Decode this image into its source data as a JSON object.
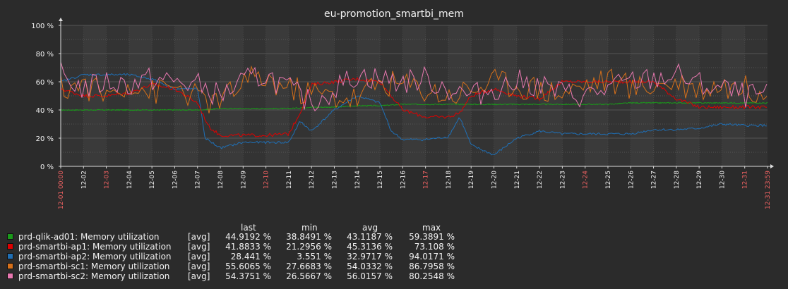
{
  "chart_data": {
    "type": "line",
    "title": "eu-promotion_smartbi_mem",
    "ylim": [
      0,
      100
    ],
    "y_ticks": [
      "0 %",
      "20 %",
      "40 %",
      "60 %",
      "80 %",
      "100 %"
    ],
    "x_start_label": "12-01 00:00",
    "x_end_label": "12-31 23:59",
    "x_tick_labels": [
      "12-02",
      "12-03",
      "12-04",
      "12-05",
      "12-06",
      "12-07",
      "12-08",
      "12-09",
      "12-10",
      "12-11",
      "12-12",
      "12-13",
      "12-14",
      "12-15",
      "12-16",
      "12-17",
      "12-18",
      "12-19",
      "12-20",
      "12-21",
      "12-22",
      "12-23",
      "12-24",
      "12-25",
      "12-26",
      "12-27",
      "12-28",
      "12-29",
      "12-30",
      "12-31"
    ],
    "weekend_tick_labels": [
      "12-03",
      "12-10",
      "12-17",
      "12-24",
      "12-31"
    ],
    "grid": true,
    "series": [
      {
        "name": "prd-qlik-ad01: Memory utilization",
        "color": "#1a9a1a",
        "x": [
          "12-01",
          "12-02",
          "12-03",
          "12-04",
          "12-05",
          "12-06",
          "12-07",
          "12-08",
          "12-09",
          "12-10",
          "12-11",
          "12-12",
          "12-13",
          "12-14",
          "12-15",
          "12-16",
          "12-17",
          "12-18",
          "12-19",
          "12-20",
          "12-21",
          "12-22",
          "12-23",
          "12-24",
          "12-25",
          "12-26",
          "12-27",
          "12-28",
          "12-29",
          "12-30",
          "12-31"
        ],
        "values": [
          40,
          40,
          40,
          40,
          40,
          40,
          40,
          41,
          41,
          41,
          41,
          42,
          42,
          43,
          43,
          44,
          44,
          44,
          44,
          44,
          44,
          44,
          44,
          44,
          44,
          45,
          45,
          45,
          45,
          45,
          45
        ]
      },
      {
        "name": "prd-smartbi-ap1: Memory utilization",
        "color": "#e00000",
        "x": [
          "12-01",
          "12-02",
          "12-03",
          "12-04",
          "12-05",
          "12-06",
          "12-07",
          "12-07 12:00",
          "12-08",
          "12-09",
          "12-10",
          "12-11",
          "12-11 12:00",
          "12-12",
          "12-13",
          "12-14",
          "12-15",
          "12-16",
          "12-17",
          "12-18",
          "12-18 12:00",
          "12-19",
          "12-20",
          "12-21",
          "12-22",
          "12-23",
          "12-24",
          "12-25",
          "12-26",
          "12-27",
          "12-28",
          "12-29",
          "12-30",
          "12-31"
        ],
        "values": [
          55,
          50,
          50,
          52,
          58,
          55,
          45,
          28,
          22,
          22,
          22,
          23,
          38,
          58,
          60,
          62,
          60,
          40,
          35,
          35,
          38,
          50,
          55,
          50,
          48,
          60,
          60,
          60,
          60,
          60,
          48,
          42,
          42,
          42
        ]
      },
      {
        "name": "prd-smartbi-ap2: Memory utilization",
        "color": "#1f6fb5",
        "x": [
          "12-01",
          "12-02",
          "12-03",
          "12-04",
          "12-05",
          "12-06",
          "12-07",
          "12-07 08:00",
          "12-08",
          "12-09",
          "12-10",
          "12-11",
          "12-11 12:00",
          "12-12",
          "12-13",
          "12-14",
          "12-15",
          "12-15 12:00",
          "12-16",
          "12-17",
          "12-18",
          "12-18 12:00",
          "12-19",
          "12-20",
          "12-21",
          "12-22",
          "12-23",
          "12-24",
          "12-25",
          "12-26",
          "12-27",
          "12-28",
          "12-29",
          "12-30",
          "12-31"
        ],
        "values": [
          60,
          65,
          65,
          65,
          62,
          55,
          55,
          20,
          13,
          17,
          17,
          17,
          32,
          25,
          40,
          50,
          45,
          25,
          19,
          19,
          21,
          35,
          15,
          8,
          20,
          25,
          23,
          23,
          23,
          23,
          26,
          26,
          27,
          30,
          29
        ]
      },
      {
        "name": "prd-smartbi-sc1: Memory utilization",
        "color": "#d7701a",
        "x": [
          "12-01",
          "12-02",
          "12-03",
          "12-04",
          "12-05",
          "12-06",
          "12-07",
          "12-08",
          "12-09",
          "12-10",
          "12-11",
          "12-12",
          "12-13",
          "12-14",
          "12-15",
          "12-16",
          "12-17",
          "12-18",
          "12-19",
          "12-20",
          "12-21",
          "12-22",
          "12-23",
          "12-24",
          "12-25",
          "12-26",
          "12-27",
          "12-28",
          "12-29",
          "12-30",
          "12-31"
        ],
        "values": [
          55,
          58,
          50,
          60,
          52,
          57,
          48,
          45,
          60,
          62,
          55,
          52,
          50,
          48,
          60,
          58,
          55,
          50,
          55,
          60,
          58,
          55,
          52,
          58,
          62,
          55,
          58,
          60,
          55,
          58,
          55
        ]
      },
      {
        "name": "prd-smartbi-sc2: Memory utilization",
        "color": "#e878b0",
        "x": [
          "12-01",
          "12-02",
          "12-03",
          "12-04",
          "12-05",
          "12-06",
          "12-07",
          "12-08",
          "12-09",
          "12-10",
          "12-11",
          "12-12",
          "12-13",
          "12-14",
          "12-15",
          "12-16",
          "12-17",
          "12-18",
          "12-19",
          "12-20",
          "12-21",
          "12-22",
          "12-23",
          "12-24",
          "12-25",
          "12-26",
          "12-27",
          "12-28",
          "12-29",
          "12-30",
          "12-31"
        ],
        "values": [
          65,
          55,
          60,
          58,
          62,
          60,
          58,
          50,
          60,
          65,
          55,
          45,
          55,
          65,
          62,
          60,
          62,
          55,
          50,
          55,
          60,
          58,
          52,
          50,
          55,
          60,
          62,
          65,
          58,
          55,
          50
        ]
      }
    ],
    "legend": {
      "columns": [
        "last",
        "min",
        "avg",
        "max"
      ],
      "rows": [
        {
          "name": "prd-qlik-ad01: Memory utilization",
          "func": "[avg]",
          "last": "44.9192 %",
          "min": "38.8491 %",
          "avg": "43.1187 %",
          "max": "59.3891 %",
          "color": "#1a9a1a"
        },
        {
          "name": "prd-smartbi-ap1: Memory utilization",
          "func": "[avg]",
          "last": "41.8833 %",
          "min": "21.2956 %",
          "avg": "45.3136 %",
          "max": "73.108 %",
          "color": "#e00000"
        },
        {
          "name": "prd-smartbi-ap2: Memory utilization",
          "func": "[avg]",
          "last": "28.441 %",
          "min": "3.551 %",
          "avg": "32.9717 %",
          "max": "94.0171 %",
          "color": "#1f6fb5"
        },
        {
          "name": "prd-smartbi-sc1: Memory utilization",
          "func": "[avg]",
          "last": "55.6065 %",
          "min": "27.6683 %",
          "avg": "54.0332 %",
          "max": "86.7958 %",
          "color": "#d7701a"
        },
        {
          "name": "prd-smartbi-sc2: Memory utilization",
          "func": "[avg]",
          "last": "54.3751 %",
          "min": "26.5667 %",
          "avg": "56.0157 %",
          "max": "80.2548 %",
          "color": "#e878b0"
        }
      ]
    }
  }
}
